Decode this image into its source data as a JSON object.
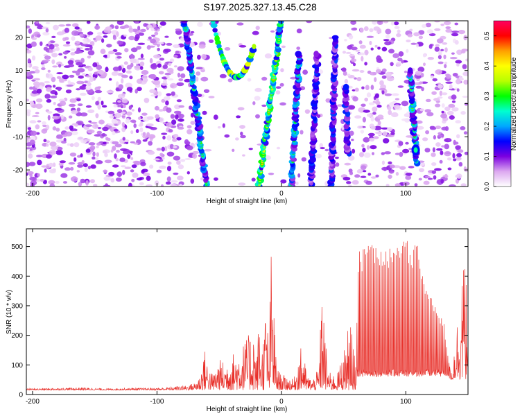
{
  "title": "S197.2025.327.13.45.C28",
  "chart_data": [
    {
      "type": "heatmap",
      "title": "S197.2025.327.13.45.C28",
      "xlabel": "Height of straight line (km)",
      "ylabel": "Frequency (Hz)",
      "xlim": [
        -205,
        150
      ],
      "ylim": [
        -25,
        25
      ],
      "xticks": [
        -200,
        -100,
        0,
        100
      ],
      "yticks": [
        -20,
        -10,
        0,
        10,
        20
      ],
      "colorbar": {
        "label": "Normalized spectral amplitude",
        "range": [
          0.0,
          0.55
        ],
        "ticks": [
          "0.0",
          "0.1",
          "0.2",
          "0.3",
          "0.4",
          "0.5"
        ],
        "colors": [
          "#ffffff",
          "#dca8f0",
          "#7b00e0",
          "#0000ff",
          "#00a8ff",
          "#00ffd0",
          "#00ff00",
          "#b8ff00",
          "#ffff00",
          "#ffa000",
          "#ff0000",
          "#ff0060"
        ]
      },
      "features": [
        {
          "kind": "band",
          "x_at_f_min": -60,
          "x_at_f_max": -78,
          "f_range": [
            -25,
            25
          ],
          "amplitude": 0.16
        },
        {
          "kind": "arc",
          "x_range": [
            -55,
            -22
          ],
          "f_min": 8,
          "f_max": 25,
          "vertex_x": -36,
          "amplitude": 0.3
        },
        {
          "kind": "band",
          "x_at_f_min": -18,
          "x_at_f_max": 0,
          "f_range": [
            -25,
            25
          ],
          "amplitude": 0.22
        },
        {
          "kind": "band",
          "x_at_f_min": 8,
          "x_at_f_max": 16,
          "f_range": [
            -25,
            15
          ],
          "amplitude": 0.15
        },
        {
          "kind": "band",
          "x_at_f_min": 24,
          "x_at_f_max": 30,
          "f_range": [
            -25,
            15
          ],
          "amplitude": 0.12
        },
        {
          "kind": "band",
          "x_at_f_min": 40,
          "x_at_f_max": 44,
          "f_range": [
            -25,
            20
          ],
          "amplitude": 0.12
        },
        {
          "kind": "band",
          "x_at_f_min": 55,
          "x_at_f_max": 49,
          "f_range": [
            -15,
            5
          ],
          "amplitude": 0.12
        },
        {
          "kind": "band",
          "x_at_f_min": 110,
          "x_at_f_max": 100,
          "f_range": [
            -18,
            10
          ],
          "amplitude": 0.16
        },
        {
          "kind": "spot",
          "x": 108,
          "f": -14,
          "amplitude": 0.22
        }
      ]
    },
    {
      "type": "line",
      "xlabel": "Height of straight line (km)",
      "ylabel": "SNR (10 * v/v)",
      "xlim": [
        -205,
        150
      ],
      "ylim": [
        0,
        560
      ],
      "xticks": [
        -200,
        -100,
        0,
        100
      ],
      "yticks": [
        0,
        100,
        200,
        300,
        400,
        500
      ],
      "series": [
        {
          "name": "SNR",
          "color": "#e8302a",
          "x": [
            -205,
            -180,
            -160,
            -140,
            -120,
            -100,
            -90,
            -80,
            -75,
            -70,
            -65,
            -62,
            -58,
            -55,
            -50,
            -45,
            -40,
            -35,
            -30,
            -25,
            -22,
            -20,
            -18,
            -16,
            -14,
            -12,
            -10,
            -8,
            -6,
            -4,
            -2,
            0,
            5,
            10,
            15,
            18,
            20,
            25,
            30,
            33,
            35,
            38,
            40,
            45,
            50,
            55,
            60,
            62,
            64,
            66,
            70,
            75,
            80,
            85,
            90,
            95,
            100,
            105,
            110,
            115,
            120,
            125,
            130,
            135,
            138,
            140,
            142,
            145,
            148,
            150
          ],
          "values": [
            20,
            22,
            24,
            20,
            22,
            22,
            25,
            30,
            32,
            40,
            70,
            160,
            90,
            70,
            120,
            110,
            140,
            150,
            180,
            210,
            230,
            120,
            270,
            150,
            230,
            340,
            120,
            540,
            300,
            90,
            80,
            70,
            60,
            50,
            160,
            150,
            70,
            50,
            90,
            400,
            200,
            80,
            70,
            70,
            150,
            250,
            90,
            510,
            450,
            480,
            500,
            490,
            470,
            460,
            490,
            480,
            510,
            470,
            500,
            360,
            330,
            280,
            250,
            100,
            80,
            290,
            250,
            460,
            440,
            430
          ]
        }
      ]
    }
  ]
}
